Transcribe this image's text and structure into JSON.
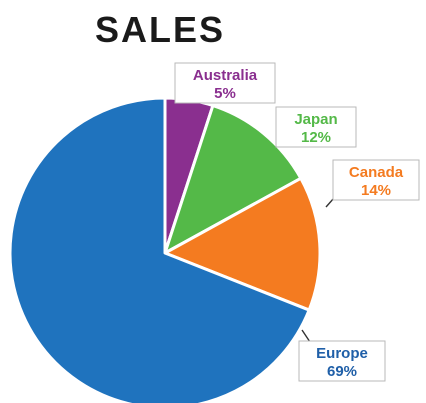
{
  "chart_data": {
    "type": "pie",
    "title": "SALES",
    "slices": [
      {
        "label": "Australia",
        "value": 5,
        "value_label": "5%",
        "color": "#8a2f8f",
        "label_color": "#8a2f8f"
      },
      {
        "label": "Japan",
        "value": 12,
        "value_label": "12%",
        "color": "#54b948",
        "label_color": "#54b948"
      },
      {
        "label": "Canada",
        "value": 14,
        "value_label": "14%",
        "color": "#f47b20",
        "label_color": "#f47b20"
      },
      {
        "label": "Europe",
        "value": 69,
        "value_label": "69%",
        "color": "#1f73be",
        "label_color": "#1f5fa8"
      }
    ],
    "start_angle": "12 o'clock",
    "direction": "clockwise",
    "legend": "none",
    "slice_border_color": "#ffffff"
  }
}
